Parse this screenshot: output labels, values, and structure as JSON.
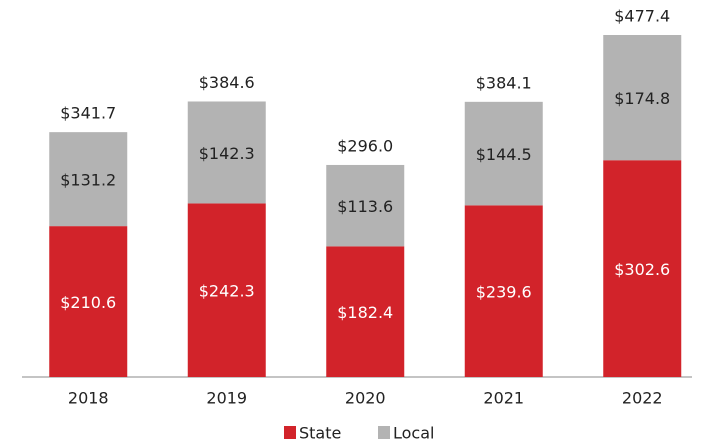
{
  "chart_data": {
    "type": "stacked-bar",
    "categories": [
      "2018",
      "2019",
      "2020",
      "2021",
      "2022"
    ],
    "series": [
      {
        "name": "State",
        "color": "#d2232a",
        "values": [
          210.6,
          242.3,
          182.4,
          239.6,
          302.6
        ],
        "value_labels": [
          "$210.6",
          "$242.3",
          "$182.4",
          "$239.6",
          "$302.6"
        ]
      },
      {
        "name": "Local",
        "color": "#b3b3b3",
        "values": [
          131.2,
          142.3,
          113.6,
          144.5,
          174.8
        ],
        "value_labels": [
          "$131.2",
          "$142.3",
          "$113.6",
          "$144.5",
          "$174.8"
        ]
      }
    ],
    "totals": [
      341.7,
      384.6,
      296.0,
      384.1,
      477.4
    ],
    "total_labels": [
      "$341.7",
      "$384.6",
      "$296.0",
      "$384.1",
      "$477.4"
    ],
    "legend": "bottom"
  }
}
